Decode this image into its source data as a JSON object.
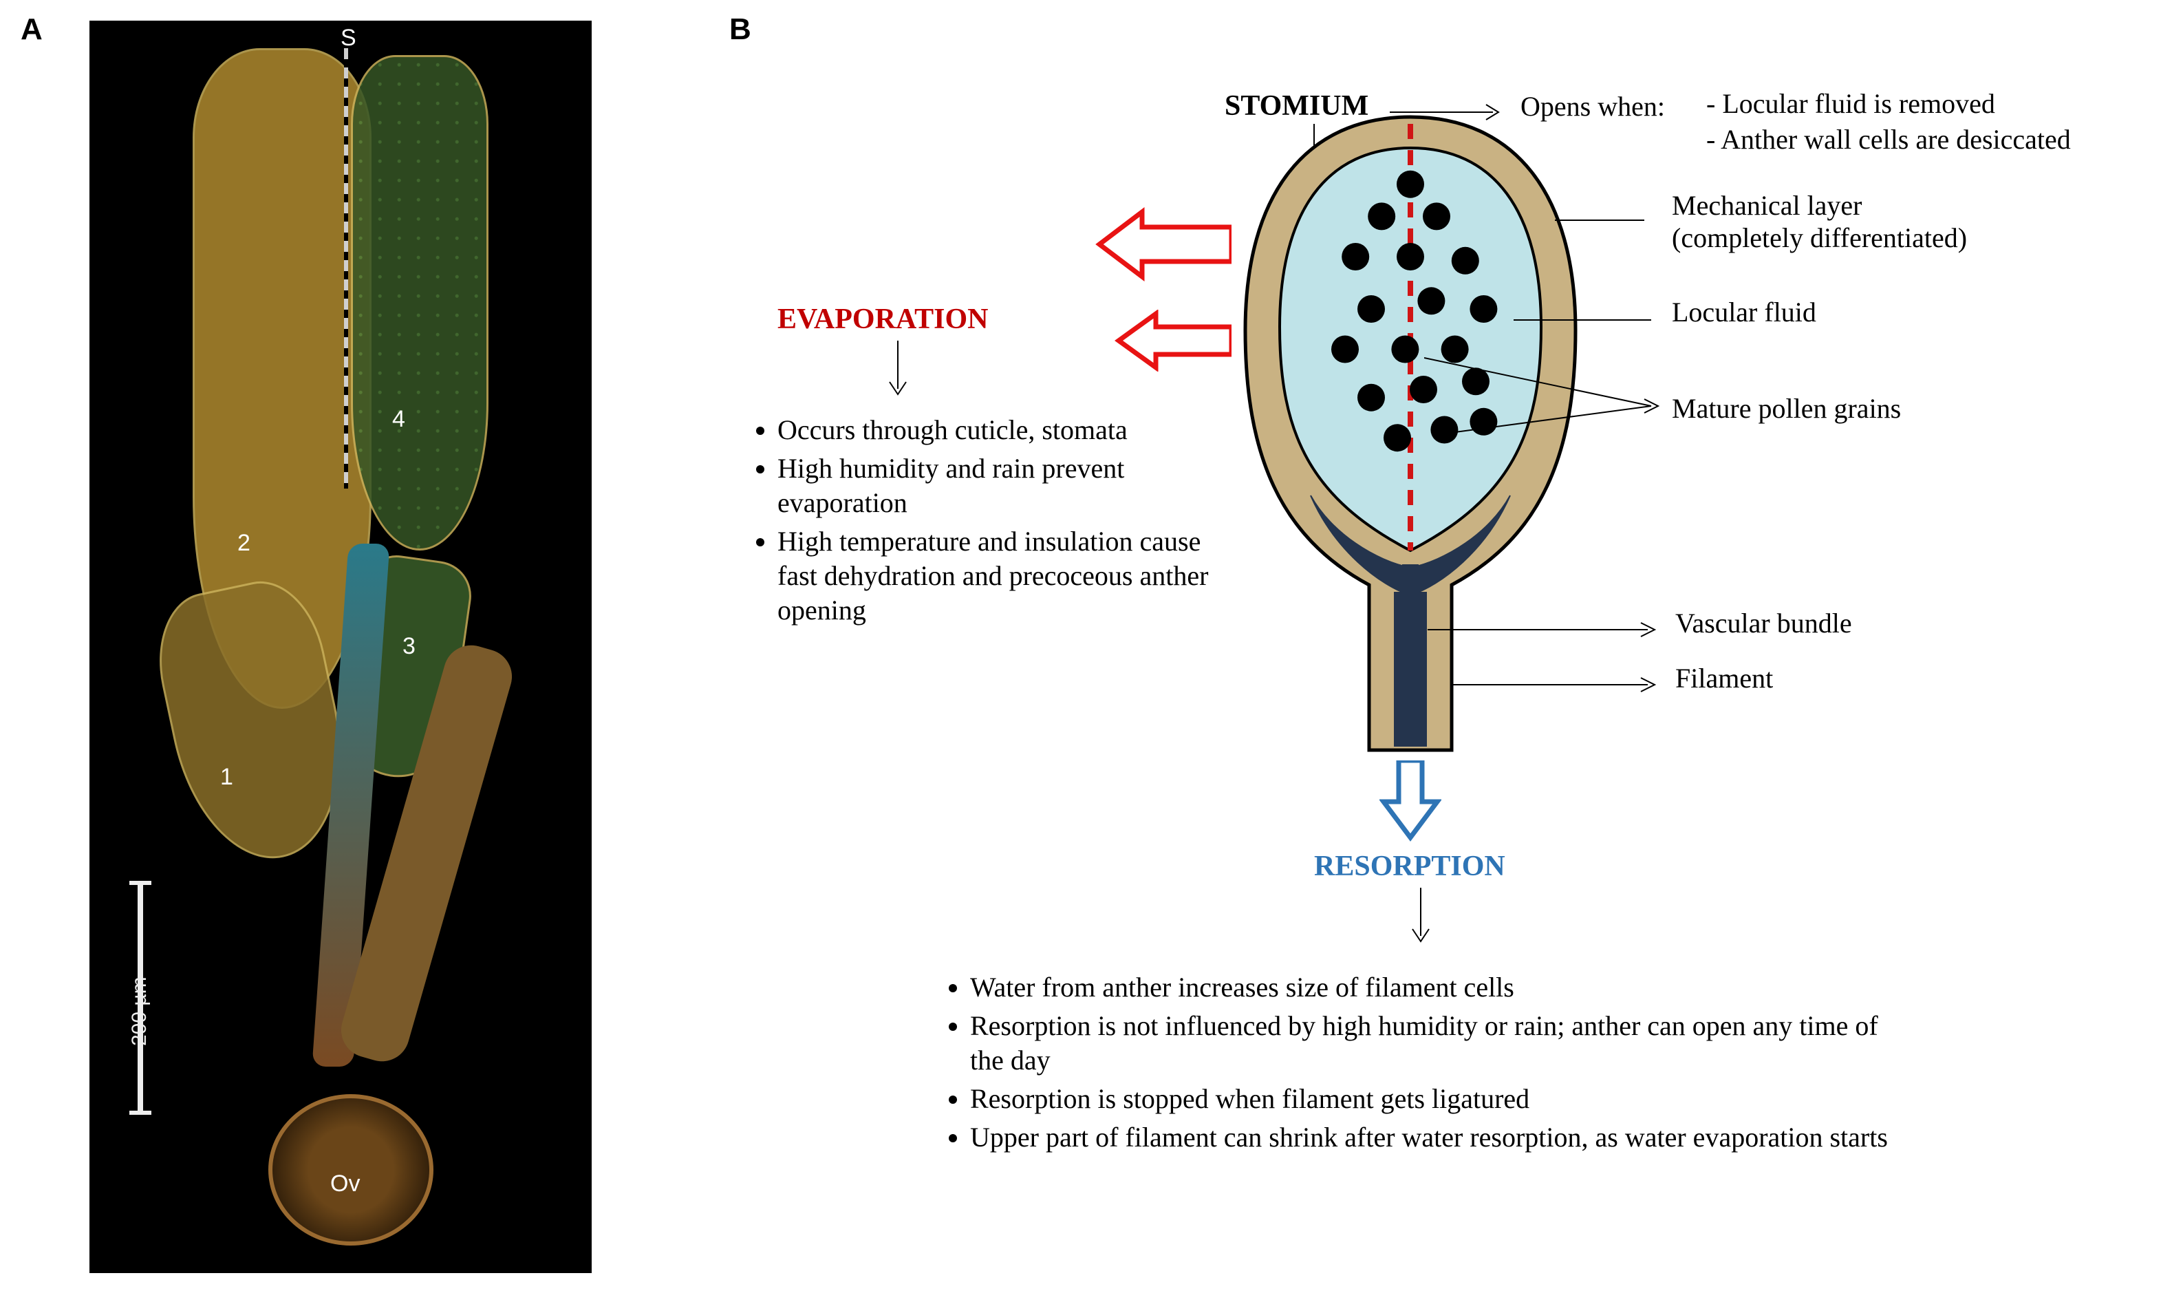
{
  "panelA": {
    "label": "A",
    "micrograph_labels": {
      "S": "S",
      "n1": "1",
      "n2": "2",
      "n3": "3",
      "n4": "4",
      "ov": "Ov"
    },
    "scale_bar_text": "200 µm",
    "colors": {
      "background": "#000000",
      "locule_yellow": "#b08a2e",
      "locule_green": "#3a5f2a",
      "outline": "#c9b05a",
      "ovary": "#7a4a22",
      "style": "#2a7a8a"
    }
  },
  "panelB": {
    "label": "B",
    "stomium": {
      "title": "STOMIUM",
      "opens_when": "Opens when:",
      "conditions": [
        "Locular fluid is removed",
        "Anther wall cells are desiccated"
      ]
    },
    "annotations": {
      "mechanical_layer": "Mechanical layer\n(completely differentiated)",
      "locular_fluid": "Locular fluid",
      "pollen": "Mature pollen grains",
      "vascular": "Vascular bundle",
      "filament": "Filament"
    },
    "evaporation": {
      "title": "EVAPORATION",
      "bullets": [
        "Occurs through cuticle, stomata",
        "High humidity and rain prevent evaporation",
        "High temperature and insulation cause fast dehydration and precoceous anther opening"
      ]
    },
    "resorption": {
      "title": "RESORPTION",
      "bullets": [
        "Water from anther increases size of filament cells",
        "Resorption is not influenced by high humidity or rain; anther can open any time of the day",
        "Resorption is stopped when filament gets ligatured",
        "Upper part of filament can shrink after water resorption, as water evaporation starts"
      ]
    },
    "diagram": {
      "wall_fill": "#c9b283",
      "wall_stroke": "#000000",
      "fluid_fill": "#bfe3e8",
      "vascular_fill": "#24344d",
      "stomium_dash": "#d01515",
      "pollen_fill": "#000000",
      "arrows": {
        "evap": "#e81313",
        "resorb": "#2e74b5"
      },
      "pollen_points": [
        [
          0.5,
          0.09
        ],
        [
          0.39,
          0.17
        ],
        [
          0.6,
          0.17
        ],
        [
          0.29,
          0.27
        ],
        [
          0.5,
          0.27
        ],
        [
          0.71,
          0.28
        ],
        [
          0.35,
          0.4
        ],
        [
          0.58,
          0.38
        ],
        [
          0.78,
          0.4
        ],
        [
          0.25,
          0.5
        ],
        [
          0.48,
          0.5
        ],
        [
          0.67,
          0.5
        ],
        [
          0.35,
          0.62
        ],
        [
          0.55,
          0.6
        ],
        [
          0.75,
          0.58
        ],
        [
          0.45,
          0.72
        ],
        [
          0.63,
          0.7
        ],
        [
          0.78,
          0.68
        ]
      ],
      "pollen_radius": 20
    },
    "typography": {
      "heading_fontsize_pt": 32,
      "body_fontsize_pt": 30,
      "font_family": "Times New Roman"
    }
  }
}
